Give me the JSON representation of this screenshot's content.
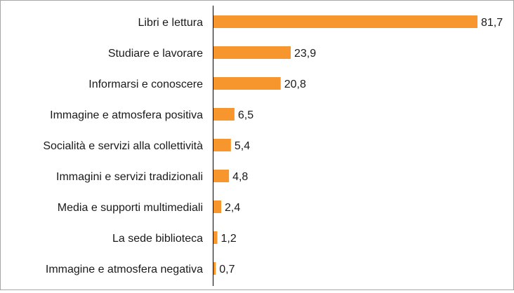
{
  "chart_data": {
    "type": "bar",
    "orientation": "horizontal",
    "categories": [
      "Libri e lettura",
      "Studiare e lavorare",
      "Informarsi e conoscere",
      "Immagine e atmosfera positiva",
      "Socialità e servizi alla collettività",
      "Immagini e servizi tradizionali",
      "Media e supporti multimediali",
      "La sede biblioteca",
      "Immagine e atmosfera negativa"
    ],
    "values": [
      81.7,
      23.9,
      20.8,
      6.5,
      5.4,
      4.8,
      2.4,
      1.2,
      0.7
    ],
    "value_labels": [
      "81,7",
      "23,9",
      "20,8",
      "6,5",
      "5,4",
      "4,8",
      "2,4",
      "1,2",
      "0,7"
    ],
    "xlim": [
      0,
      85
    ],
    "bar_color": "#f7962d",
    "axis_color": "#000000",
    "grid": false,
    "legend": "none"
  }
}
